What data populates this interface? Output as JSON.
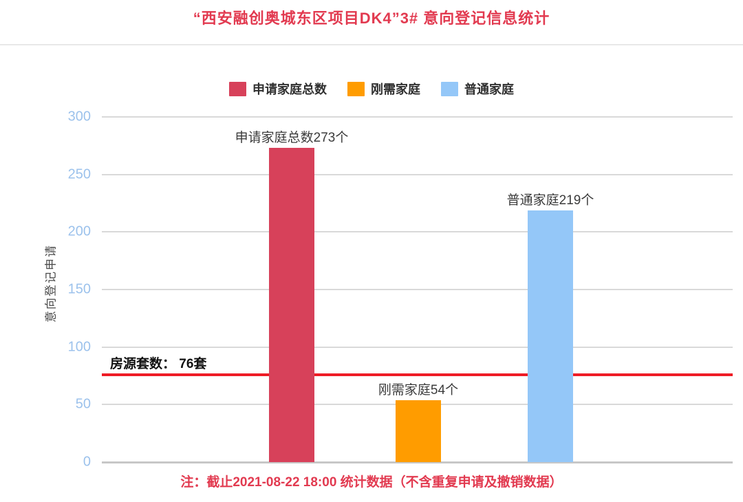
{
  "title": "“西安融创奥城东区项目DK4”3# 意向登记信息统计",
  "chart_data": {
    "type": "bar",
    "title": "“西安融创奥城东区项目DK4”3# 意向登记信息统计",
    "ylabel": "意向登记申请",
    "xlabel": "",
    "ylim": [
      0,
      300
    ],
    "yticks": [
      0,
      50,
      100,
      150,
      200,
      250,
      300
    ],
    "grid": true,
    "legend_position": "top-center",
    "series": [
      {
        "name": "申请家庭总数",
        "value": 273,
        "bar_label": "申请家庭总数273个",
        "color": "#d7415a"
      },
      {
        "name": "刚需家庭",
        "value": 54,
        "bar_label": "刚需家庭54个",
        "color": "#ff9c00"
      },
      {
        "name": "普通家庭",
        "value": 219,
        "bar_label": "普通家庭219个",
        "color": "#94c7f8"
      }
    ],
    "reference_line": {
      "value": 76,
      "label": "房源套数： 76套",
      "color": "#ee1c25"
    }
  },
  "footer": {
    "note": "注：截止2021-08-22 18:00 统计数据（不含重复申请及撤销数据）"
  },
  "colors": {
    "title_red": "#e23a50",
    "footer_red": "#e23a50",
    "tick_blue": "#9cc2ec",
    "grid_gray": "#d9d9d9",
    "axis_text": "#4a4a4a"
  }
}
